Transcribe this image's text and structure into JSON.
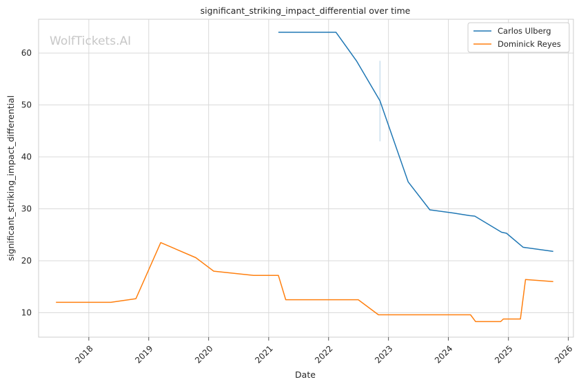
{
  "chart_data": {
    "type": "line",
    "title": "significant_striking_impact_differential over time",
    "xlabel": "Date",
    "ylabel": "significant_striking_impact_differential",
    "watermark": "WolfTickets.AI",
    "xlim": [
      "2017-03-01",
      "2026-02-01"
    ],
    "ylim": [
      5.3,
      66.5
    ],
    "x_ticks": [
      "2018",
      "2019",
      "2020",
      "2021",
      "2022",
      "2023",
      "2024",
      "2025",
      "2026"
    ],
    "y_ticks": [
      10,
      20,
      30,
      40,
      50,
      60
    ],
    "grid": true,
    "legend_position": "top-right",
    "series": [
      {
        "name": "Carlos Ulberg",
        "color": "#1f77b4",
        "points": [
          {
            "x": "2021-03-01",
            "y": 64.0
          },
          {
            "x": "2022-02-15",
            "y": 64.0
          },
          {
            "x": "2022-06-20",
            "y": 58.5
          },
          {
            "x": "2022-11-10",
            "y": 50.8
          },
          {
            "x": "2023-05-01",
            "y": 35.2
          },
          {
            "x": "2023-09-10",
            "y": 29.8
          },
          {
            "x": "2024-02-01",
            "y": 29.2
          },
          {
            "x": "2024-05-10",
            "y": 28.7
          },
          {
            "x": "2024-06-10",
            "y": 28.6
          },
          {
            "x": "2024-11-20",
            "y": 25.5
          },
          {
            "x": "2024-12-20",
            "y": 25.3
          },
          {
            "x": "2025-04-01",
            "y": 22.6
          },
          {
            "x": "2025-10-01",
            "y": 21.8
          }
        ],
        "error_bars": [
          {
            "x": "2022-11-10",
            "low": 43.0,
            "high": 58.5
          }
        ]
      },
      {
        "name": "Dominick Reyes",
        "color": "#ff7f0e",
        "points": [
          {
            "x": "2017-06-15",
            "y": 12.0
          },
          {
            "x": "2018-05-15",
            "y": 12.0
          },
          {
            "x": "2018-10-15",
            "y": 12.7
          },
          {
            "x": "2019-03-15",
            "y": 23.5
          },
          {
            "x": "2019-10-15",
            "y": 20.6
          },
          {
            "x": "2020-02-01",
            "y": 18.0
          },
          {
            "x": "2020-10-01",
            "y": 17.2
          },
          {
            "x": "2021-03-01",
            "y": 17.2
          },
          {
            "x": "2021-04-15",
            "y": 12.5
          },
          {
            "x": "2022-07-01",
            "y": 12.5
          },
          {
            "x": "2022-11-01",
            "y": 9.6
          },
          {
            "x": "2024-05-15",
            "y": 9.6
          },
          {
            "x": "2024-06-15",
            "y": 8.3
          },
          {
            "x": "2024-11-15",
            "y": 8.3
          },
          {
            "x": "2024-12-01",
            "y": 8.8
          },
          {
            "x": "2025-03-15",
            "y": 8.8
          },
          {
            "x": "2025-04-15",
            "y": 16.4
          },
          {
            "x": "2025-10-01",
            "y": 16.0
          }
        ]
      }
    ]
  }
}
